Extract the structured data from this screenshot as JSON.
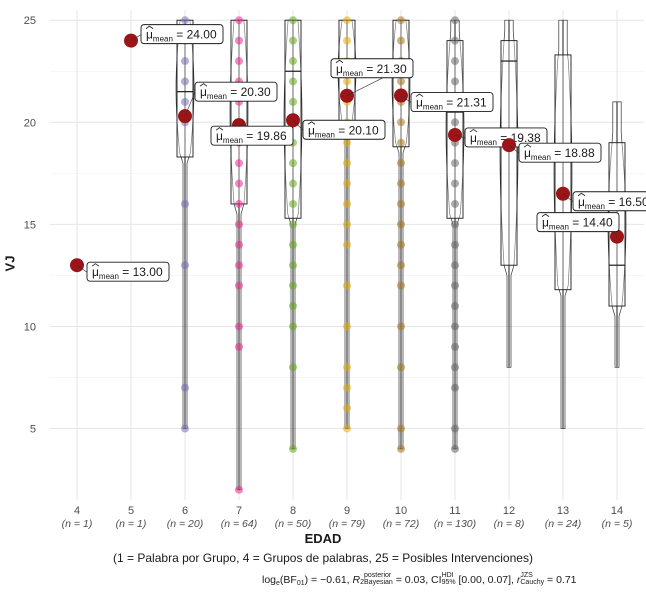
{
  "chart_data": {
    "type": "violin-box-scatter",
    "xlabel": "EDAD",
    "ylabel": "VJ",
    "ylim": [
      1.5,
      25.5
    ],
    "yticks": [
      5,
      10,
      15,
      20,
      25
    ],
    "grid": true,
    "groups": [
      {
        "x": "4",
        "n": "(n = 1)",
        "mean": 13.0,
        "mean_label": "= 13.00",
        "color": "#7570b3",
        "points": [
          13
        ]
      },
      {
        "x": "5",
        "n": "(n = 1)",
        "mean": 24.0,
        "mean_label": "= 24.00",
        "color": "#7570b3",
        "points": [
          24
        ]
      },
      {
        "x": "6",
        "n": "(n = 20)",
        "mean": 20.3,
        "mean_label": "= 20.30",
        "color": "#7570b3",
        "box": {
          "q1": 18.3,
          "median": 21.5,
          "q3": 25,
          "min": 5,
          "max": 25
        },
        "points": [
          25,
          24,
          23,
          22,
          21,
          20,
          16,
          13,
          7,
          5
        ]
      },
      {
        "x": "7",
        "n": "(n = 64)",
        "mean": 19.86,
        "mean_label": "= 19.86",
        "color": "#e7298a",
        "box": {
          "q1": 16,
          "median": 21.5,
          "q3": 25,
          "min": 2,
          "max": 25
        },
        "points": [
          25,
          24,
          23,
          22,
          21,
          20,
          19,
          18,
          17,
          16,
          15,
          14,
          13,
          12,
          10,
          9,
          2
        ]
      },
      {
        "x": "8",
        "n": "(n = 50)",
        "mean": 20.1,
        "mean_label": "= 20.10",
        "color": "#66a61e",
        "box": {
          "q1": 15.3,
          "median": 22.5,
          "q3": 25,
          "min": 4,
          "max": 25
        },
        "points": [
          25,
          24,
          23,
          22,
          21,
          20,
          19,
          18,
          17,
          16,
          15,
          14,
          13,
          12,
          11,
          10,
          8,
          4
        ]
      },
      {
        "x": "9",
        "n": "(n = 79)",
        "mean": 21.3,
        "mean_label": "= 21.30",
        "color": "#e6ab02",
        "box": {
          "q1": 20,
          "median": 23,
          "q3": 25,
          "min": 5,
          "max": 25
        },
        "points": [
          25,
          24,
          23,
          22,
          21,
          20,
          19,
          18,
          17,
          16,
          15,
          14,
          12,
          10,
          8,
          7,
          6,
          5
        ]
      },
      {
        "x": "10",
        "n": "(n = 72)",
        "mean": 21.31,
        "mean_label": "= 21.31",
        "color": "#a6761d",
        "box": {
          "q1": 18.8,
          "median": 23,
          "q3": 25,
          "min": 4,
          "max": 25
        },
        "points": [
          25,
          24,
          23,
          22,
          21,
          20,
          19,
          18,
          17,
          16,
          15,
          14,
          13,
          12,
          10,
          8,
          5,
          4
        ]
      },
      {
        "x": "11",
        "n": "(n = 130)",
        "mean": 19.38,
        "mean_label": "= 19.38",
        "color": "#666666",
        "box": {
          "q1": 15.3,
          "median": 20.5,
          "q3": 24,
          "min": 4,
          "max": 25
        },
        "points": [
          25,
          24,
          23,
          22,
          21,
          20,
          19,
          18,
          17,
          16,
          15,
          14,
          13,
          12,
          11,
          10,
          9,
          8,
          7,
          5,
          4
        ]
      },
      {
        "x": "12",
        "n": "(n = 8)",
        "mean": 18.88,
        "mean_label": "= 18.88",
        "color": "#555555",
        "box": {
          "q1": 13,
          "median": 23,
          "q3": 24,
          "min": 8,
          "max": 25
        },
        "points": []
      },
      {
        "x": "13",
        "n": "(n = 24)",
        "mean": 16.5,
        "mean_label": "= 16.50",
        "color": "#555555",
        "box": {
          "q1": 11.8,
          "median": 15.5,
          "q3": 23.3,
          "min": 5,
          "max": 25
        },
        "points": []
      },
      {
        "x": "14",
        "n": "(n = 5)",
        "mean": 14.4,
        "mean_label": "= 14.40",
        "color": "#555555",
        "box": {
          "q1": 11,
          "median": 13,
          "q3": 19,
          "min": 8,
          "max": 21
        },
        "points": []
      }
    ],
    "mean_label_prefix": "μ",
    "mean_label_sub": "mean",
    "caption_1": "(1 = Palabra por Grupo, 4 = Grupos de palabras, 25 = Posibles Intervenciones)",
    "stats": {
      "bf_lhs": "log",
      "bf_lhs_sub": "e",
      "bf_mid": "(BF",
      "bf_sub": "01",
      "bf_value": ") = −0.61, ",
      "r2": "R",
      "r2_sup": "2",
      "r2_sup2": "posterior",
      "r2_sub": "Bayesian",
      "r2_value": " = 0.03, CI",
      "ci_sup": "HDI",
      "ci_sub": "95%",
      "ci_value": " [0.00, 0.07], ",
      "r": "r",
      "r_sup": "JZS",
      "r_sub": "Cauchy",
      "r_value": " = 0.71"
    }
  }
}
